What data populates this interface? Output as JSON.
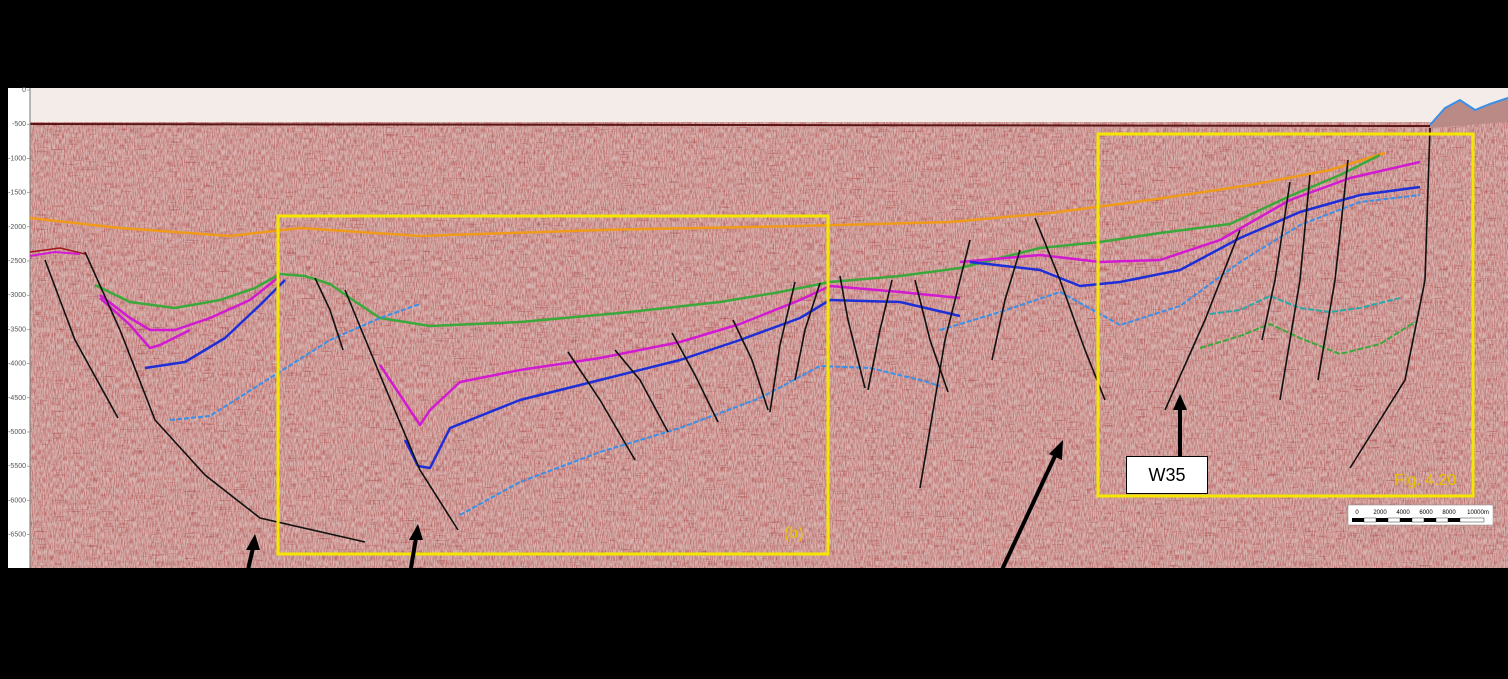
{
  "depth_axis": {
    "ticks": [
      "0",
      "-500",
      "-1000",
      "-1500",
      "-2000",
      "-2500",
      "-3000",
      "-3500",
      "-4000",
      "-4500",
      "-5000",
      "-5500",
      "-6000",
      "-6500"
    ]
  },
  "inset_boxes": [
    {
      "label": "(b)"
    },
    {
      "label": "Fig. 4.20"
    }
  ],
  "well": {
    "label": "W35"
  },
  "scale_bar": {
    "ticks": [
      "0",
      "2000",
      "4000",
      "6000",
      "8000",
      "10000m"
    ]
  },
  "colors": {
    "background": "#000000",
    "box": "#f5e600",
    "horizon_orange": "#f09a1a",
    "horizon_green": "#3aa83a",
    "horizon_magenta": "#d21ad2",
    "horizon_blue": "#1f2fd8",
    "horizon_lightblue": "#3a8fe8",
    "horizon_teal": "#2aa8a8",
    "fault": "#111111"
  }
}
